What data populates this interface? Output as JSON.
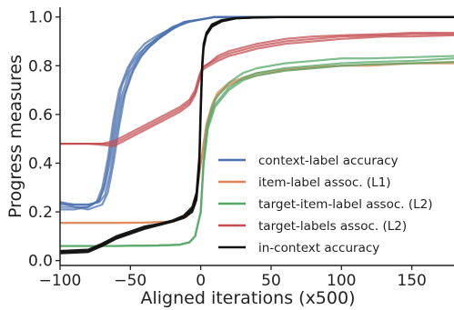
{
  "chart_data": {
    "type": "line",
    "title": "",
    "xlabel": "Aligned iterations (x500)",
    "ylabel": "Progress measures",
    "xlim": [
      -100,
      180
    ],
    "ylim": [
      -0.02,
      1.04
    ],
    "xticks": [
      "−100",
      "−50",
      "0",
      "50",
      "100",
      "150"
    ],
    "yticks": [
      "0.0",
      "0.2",
      "0.4",
      "0.6",
      "0.8",
      "1.0"
    ],
    "xtick_values": [
      -100,
      -50,
      0,
      50,
      100,
      150
    ],
    "ytick_values": [
      0.0,
      0.2,
      0.4,
      0.6,
      0.8,
      1.0
    ],
    "grid": false,
    "legend_position": "bottom-right",
    "series": [
      {
        "name": "context-label accuracy",
        "color": "#4c72b0",
        "runs": [
          {
            "x": [
              -100,
              -90,
              -80,
              -72,
              -68,
              -64,
              -60,
              -56,
              -50,
              -44,
              -38,
              -30,
              -20,
              -10,
              0,
              10,
              20,
              40,
              80,
              120,
              180
            ],
            "y": [
              0.24,
              0.23,
              0.23,
              0.24,
              0.27,
              0.37,
              0.52,
              0.65,
              0.76,
              0.83,
              0.87,
              0.91,
              0.95,
              0.98,
              0.99,
              1.0,
              1.0,
              1.0,
              1.0,
              1.0,
              1.0
            ]
          },
          {
            "x": [
              -100,
              -90,
              -80,
              -74,
              -70,
              -66,
              -62,
              -58,
              -52,
              -46,
              -40,
              -32,
              -22,
              -12,
              0,
              10,
              20,
              40,
              80,
              120,
              180
            ],
            "y": [
              0.21,
              0.21,
              0.22,
              0.24,
              0.3,
              0.42,
              0.58,
              0.7,
              0.79,
              0.85,
              0.89,
              0.92,
              0.95,
              0.98,
              0.99,
              1.0,
              1.0,
              1.0,
              1.0,
              1.0,
              1.0
            ]
          },
          {
            "x": [
              -100,
              -90,
              -80,
              -70,
              -66,
              -62,
              -58,
              -54,
              -48,
              -42,
              -36,
              -28,
              -18,
              -8,
              0,
              10,
              20,
              40,
              80,
              120,
              180
            ],
            "y": [
              0.24,
              0.22,
              0.21,
              0.23,
              0.28,
              0.4,
              0.55,
              0.68,
              0.78,
              0.84,
              0.88,
              0.92,
              0.96,
              0.98,
              0.99,
              1.0,
              1.0,
              1.0,
              1.0,
              1.0,
              1.0
            ]
          },
          {
            "x": [
              -100,
              -90,
              -80,
              -72,
              -68,
              -64,
              -60,
              -56,
              -50,
              -44,
              -38,
              -30,
              -20,
              -10,
              0,
              10,
              20,
              40,
              80,
              120,
              180
            ],
            "y": [
              0.22,
              0.22,
              0.22,
              0.25,
              0.32,
              0.46,
              0.61,
              0.72,
              0.8,
              0.85,
              0.88,
              0.92,
              0.96,
              0.98,
              0.99,
              1.0,
              1.0,
              1.0,
              1.0,
              1.0,
              1.0
            ]
          },
          {
            "x": [
              -100,
              -90,
              -80,
              -73,
              -69,
              -65,
              -61,
              -57,
              -51,
              -45,
              -39,
              -31,
              -21,
              -11,
              0,
              10,
              20,
              40,
              80,
              120,
              180
            ],
            "y": [
              0.23,
              0.23,
              0.23,
              0.24,
              0.29,
              0.39,
              0.53,
              0.66,
              0.77,
              0.83,
              0.88,
              0.91,
              0.95,
              0.98,
              0.99,
              1.0,
              1.0,
              1.0,
              1.0,
              1.0,
              1.0
            ]
          }
        ]
      },
      {
        "name": "item-label assoc. (L1)",
        "color": "#dd8452",
        "runs": [
          {
            "x": [
              -100,
              -60,
              -40,
              -20,
              -10,
              -4,
              0,
              4,
              8,
              12,
              20,
              30,
              40,
              60,
              80,
              100,
              120,
              150,
              180
            ],
            "y": [
              0.155,
              0.155,
              0.156,
              0.16,
              0.18,
              0.23,
              0.4,
              0.55,
              0.63,
              0.68,
              0.72,
              0.745,
              0.76,
              0.78,
              0.79,
              0.8,
              0.8,
              0.81,
              0.81
            ]
          },
          {
            "x": [
              -100,
              -60,
              -40,
              -20,
              -10,
              -4,
              0,
              4,
              8,
              12,
              20,
              30,
              40,
              60,
              80,
              100,
              120,
              150,
              180
            ],
            "y": [
              0.155,
              0.155,
              0.156,
              0.16,
              0.18,
              0.23,
              0.4,
              0.56,
              0.64,
              0.69,
              0.73,
              0.75,
              0.77,
              0.785,
              0.795,
              0.8,
              0.805,
              0.81,
              0.815
            ]
          }
        ]
      },
      {
        "name": "target-item-label assoc. (L2)",
        "color": "#55a868",
        "runs": [
          {
            "x": [
              -100,
              -60,
              -30,
              -15,
              -8,
              -4,
              0,
              2,
              5,
              10,
              20,
              30,
              40,
              60,
              80,
              100,
              120,
              150,
              180
            ],
            "y": [
              0.06,
              0.06,
              0.062,
              0.065,
              0.075,
              0.1,
              0.2,
              0.4,
              0.55,
              0.64,
              0.71,
              0.75,
              0.77,
              0.79,
              0.8,
              0.81,
              0.815,
              0.82,
              0.83
            ]
          },
          {
            "x": [
              -100,
              -60,
              -30,
              -15,
              -8,
              -4,
              0,
              2,
              5,
              10,
              20,
              30,
              40,
              60,
              80,
              100,
              120,
              150,
              180
            ],
            "y": [
              0.06,
              0.06,
              0.062,
              0.065,
              0.075,
              0.1,
              0.2,
              0.42,
              0.57,
              0.66,
              0.73,
              0.77,
              0.79,
              0.81,
              0.82,
              0.83,
              0.83,
              0.835,
              0.84
            ]
          },
          {
            "x": [
              -100,
              -60,
              -30,
              -15,
              -8,
              -4,
              0,
              2,
              5,
              10,
              20,
              30,
              40,
              60,
              80,
              100,
              120,
              150,
              180
            ],
            "y": [
              0.06,
              0.06,
              0.062,
              0.065,
              0.075,
              0.1,
              0.2,
              0.39,
              0.54,
              0.63,
              0.7,
              0.74,
              0.76,
              0.78,
              0.79,
              0.8,
              0.805,
              0.81,
              0.815
            ]
          }
        ]
      },
      {
        "name": "target-labels assoc. (L2)",
        "color": "#c44e52",
        "runs": [
          {
            "x": [
              -100,
              -80,
              -70,
              -62,
              -55,
              -45,
              -35,
              -25,
              -15,
              -8,
              -4,
              -1,
              1,
              3,
              6,
              12,
              20,
              40,
              60,
              80,
              100,
              130,
              150,
              180
            ],
            "y": [
              0.48,
              0.48,
              0.48,
              0.49,
              0.51,
              0.54,
              0.57,
              0.6,
              0.63,
              0.66,
              0.7,
              0.76,
              0.79,
              0.8,
              0.81,
              0.83,
              0.85,
              0.88,
              0.9,
              0.91,
              0.92,
              0.925,
              0.93,
              0.93
            ]
          },
          {
            "x": [
              -100,
              -80,
              -70,
              -62,
              -55,
              -45,
              -35,
              -25,
              -15,
              -8,
              -4,
              -1,
              1,
              3,
              6,
              12,
              20,
              40,
              60,
              80,
              100,
              130,
              150,
              180
            ],
            "y": [
              0.48,
              0.48,
              0.48,
              0.48,
              0.5,
              0.53,
              0.56,
              0.59,
              0.62,
              0.65,
              0.69,
              0.75,
              0.79,
              0.8,
              0.81,
              0.84,
              0.86,
              0.89,
              0.91,
              0.92,
              0.925,
              0.93,
              0.935,
              0.935
            ]
          },
          {
            "x": [
              -100,
              -80,
              -70,
              -62,
              -55,
              -45,
              -35,
              -25,
              -15,
              -8,
              -4,
              -1,
              1,
              3,
              6,
              12,
              20,
              40,
              60,
              80,
              100,
              130,
              150,
              180
            ],
            "y": [
              0.48,
              0.48,
              0.475,
              0.47,
              0.49,
              0.52,
              0.55,
              0.58,
              0.61,
              0.64,
              0.68,
              0.74,
              0.78,
              0.79,
              0.8,
              0.82,
              0.84,
              0.87,
              0.89,
              0.9,
              0.91,
              0.92,
              0.92,
              0.925
            ]
          }
        ]
      },
      {
        "name": "in-context accuracy",
        "color": "#111111",
        "runs": [
          {
            "x": [
              -100,
              -80,
              -70,
              -60,
              -50,
              -40,
              -30,
              -20,
              -12,
              -6,
              -3,
              -1,
              0,
              1,
              2,
              4,
              8,
              15,
              25,
              40,
              60,
              100,
              180
            ],
            "y": [
              0.03,
              0.035,
              0.06,
              0.09,
              0.11,
              0.13,
              0.145,
              0.16,
              0.18,
              0.21,
              0.26,
              0.4,
              0.62,
              0.8,
              0.88,
              0.93,
              0.965,
              0.985,
              0.995,
              0.998,
              1.0,
              1.0,
              1.0
            ]
          },
          {
            "x": [
              -100,
              -80,
              -70,
              -60,
              -50,
              -40,
              -30,
              -20,
              -12,
              -6,
              -3,
              -1,
              0,
              1,
              2,
              4,
              8,
              15,
              25,
              40,
              60,
              100,
              180
            ],
            "y": [
              0.04,
              0.045,
              0.07,
              0.1,
              0.12,
              0.14,
              0.15,
              0.165,
              0.185,
              0.22,
              0.28,
              0.43,
              0.65,
              0.81,
              0.89,
              0.935,
              0.97,
              0.988,
              0.996,
              0.999,
              1.0,
              1.0,
              1.0
            ]
          },
          {
            "x": [
              -100,
              -80,
              -70,
              -60,
              -50,
              -40,
              -30,
              -20,
              -12,
              -6,
              -3,
              -1,
              0,
              1,
              2,
              4,
              8,
              15,
              25,
              40,
              60,
              100,
              180
            ],
            "y": [
              0.035,
              0.04,
              0.065,
              0.095,
              0.115,
              0.135,
              0.15,
              0.16,
              0.175,
              0.2,
              0.25,
              0.38,
              0.6,
              0.78,
              0.87,
              0.925,
              0.96,
              0.982,
              0.994,
              0.998,
              1.0,
              1.0,
              1.0
            ]
          }
        ]
      }
    ]
  }
}
